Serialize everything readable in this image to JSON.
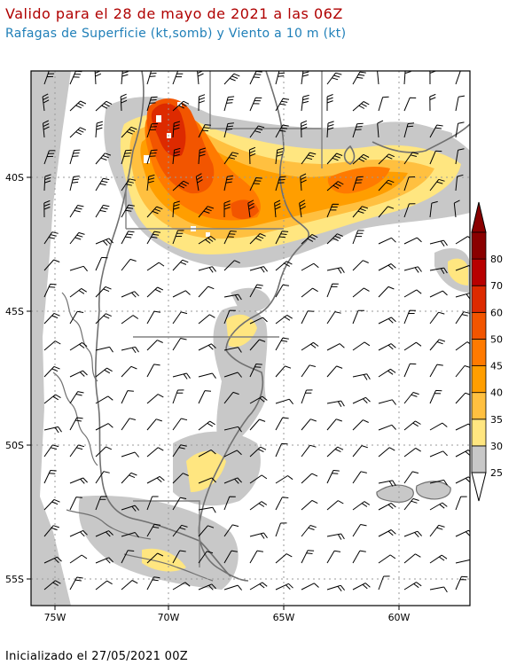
{
  "title": "Valido para el 28 de mayo de 2021 a las 06Z",
  "subtitle": "Rafagas de Superficie (kt,somb) y Viento a 10 m (kt)",
  "footer": "Inicializado el 27/05/2021 00Z",
  "lat_labels": [
    "40S",
    "45S",
    "50S",
    "55S"
  ],
  "lon_labels": [
    "75W",
    "70W",
    "65W",
    "60W"
  ],
  "colorbar": {
    "labels": [
      "25",
      "30",
      "35",
      "40",
      "45",
      "50",
      "60",
      "70",
      "80"
    ],
    "colors": [
      "#c8c8c8",
      "#ffe680",
      "#ffc040",
      "#ff9e00",
      "#ff7a00",
      "#f25500",
      "#dd2a00",
      "#b80000",
      "#8a0000"
    ]
  },
  "colors": {
    "title": "#b00000",
    "subtitle": "#1f7fb8",
    "coast": "#707070",
    "grid": "#9a9a9a"
  }
}
